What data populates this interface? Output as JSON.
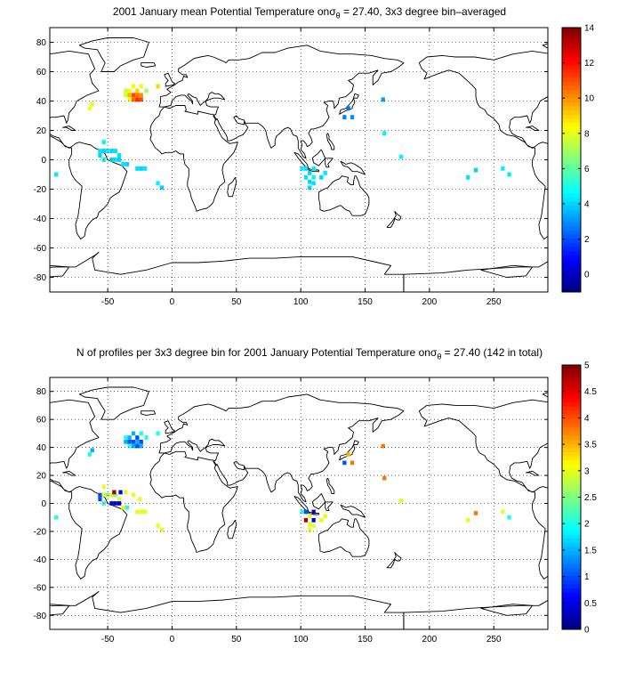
{
  "chart_data": [
    {
      "type": "heatmap",
      "title": {
        "prefix": "2001 January mean Potential Temperature on",
        "sigma": "σ",
        "sub": "θ",
        "suffix": " = 27.40, 3x3 degree bin–averaged"
      },
      "xlim": [
        -95,
        292
      ],
      "ylim": [
        -90,
        90
      ],
      "xticks": [
        -50,
        0,
        50,
        100,
        150,
        200,
        250
      ],
      "yticks": [
        80,
        60,
        40,
        20,
        0,
        -20,
        -40,
        -60,
        -80
      ],
      "grid": "dotted",
      "colorbar": {
        "min": -1,
        "max": 14,
        "ticks": [
          0,
          2,
          4,
          6,
          8,
          10,
          12,
          14
        ],
        "colormap": "jet"
      },
      "cell_size_deg": 3,
      "points": [
        [
          -30,
          50,
          8.5
        ],
        [
          -24,
          50,
          8.0
        ],
        [
          -36,
          47,
          7.5
        ],
        [
          -33,
          47,
          8.2
        ],
        [
          -27,
          47,
          9.0
        ],
        [
          -20,
          47,
          7.0
        ],
        [
          -36,
          44,
          7.8
        ],
        [
          -33,
          44,
          9.5
        ],
        [
          -30,
          44,
          11.0
        ],
        [
          -27,
          44,
          10.5
        ],
        [
          -24,
          44,
          10.0
        ],
        [
          -33,
          41,
          8.0
        ],
        [
          -30,
          41,
          10.5
        ],
        [
          -27,
          41,
          11.5
        ],
        [
          -24,
          41,
          11.0
        ],
        [
          -11,
          50,
          9.0
        ],
        [
          -62,
          38,
          7.8
        ],
        [
          -64,
          35,
          8.3
        ],
        [
          -53,
          12,
          4.5
        ],
        [
          -56,
          6,
          4.3
        ],
        [
          -53,
          6,
          4.0
        ],
        [
          -50,
          6,
          4.5
        ],
        [
          -47,
          6,
          4.0
        ],
        [
          -44,
          6,
          4.2
        ],
        [
          -56,
          3,
          4.0
        ],
        [
          -41,
          3,
          4.2
        ],
        [
          -53,
          0,
          4.5
        ],
        [
          -47,
          0,
          4.0
        ],
        [
          -44,
          0,
          4.3
        ],
        [
          -41,
          0,
          4.0
        ],
        [
          -38,
          -3,
          4.2
        ],
        [
          -35,
          -3,
          4.0
        ],
        [
          -27,
          -6,
          4.2
        ],
        [
          -24,
          -6,
          4.0
        ],
        [
          -21,
          -6,
          4.3
        ],
        [
          -11,
          -16,
          4.5
        ],
        [
          -8,
          -19,
          4.0
        ],
        [
          -90,
          -10,
          4.3
        ],
        [
          101,
          -6,
          4.5
        ],
        [
          104,
          -6,
          4.2
        ],
        [
          107,
          -9,
          4.0
        ],
        [
          110,
          -6,
          4.3
        ],
        [
          104,
          -12,
          4.2
        ],
        [
          107,
          -15,
          4.0
        ],
        [
          110,
          -12,
          4.5
        ],
        [
          107,
          -19,
          4.0
        ],
        [
          110,
          -16,
          4.2
        ],
        [
          116,
          -12,
          4.0
        ],
        [
          119,
          -9,
          4.3
        ],
        [
          137,
          35,
          2.5
        ],
        [
          134,
          29,
          2.8
        ],
        [
          140,
          29,
          3.0
        ],
        [
          164,
          41,
          3.2
        ],
        [
          165,
          18,
          4.5
        ],
        [
          178,
          2,
          4.5
        ],
        [
          230,
          -12,
          4.2
        ],
        [
          236,
          -7,
          4.0
        ],
        [
          257,
          -6,
          4.5
        ],
        [
          262,
          -10,
          4.3
        ]
      ]
    },
    {
      "type": "heatmap",
      "title": {
        "prefix": "N of profiles per 3x3 degree bin for 2001 January Potential Temperature on",
        "sigma": "σ",
        "sub": "θ",
        "suffix": " = 27.40 (142 in total)"
      },
      "xlim": [
        -95,
        292
      ],
      "ylim": [
        -90,
        90
      ],
      "xticks": [
        -50,
        0,
        50,
        100,
        150,
        200,
        250
      ],
      "yticks": [
        80,
        60,
        40,
        20,
        0,
        -20,
        -40,
        -60,
        -80
      ],
      "grid": "dotted",
      "colorbar": {
        "min": 0,
        "max": 5,
        "ticks": [
          0,
          0.5,
          1,
          1.5,
          2,
          2.5,
          3,
          3.5,
          4,
          4.5,
          5
        ],
        "colormap": "jet"
      },
      "cell_size_deg": 3,
      "points": [
        [
          -30,
          50,
          1.5
        ],
        [
          -24,
          50,
          2.0
        ],
        [
          -36,
          47,
          2.0
        ],
        [
          -33,
          47,
          1.5
        ],
        [
          -27,
          47,
          1.0
        ],
        [
          -20,
          47,
          2.0
        ],
        [
          -36,
          44,
          1.5
        ],
        [
          -33,
          44,
          1.0
        ],
        [
          -30,
          44,
          1.0
        ],
        [
          -27,
          44,
          1.5
        ],
        [
          -24,
          44,
          1.0
        ],
        [
          -33,
          41,
          2.0
        ],
        [
          -30,
          41,
          1.5
        ],
        [
          -27,
          41,
          1.0
        ],
        [
          -24,
          41,
          1.5
        ],
        [
          -11,
          50,
          2.0
        ],
        [
          -62,
          38,
          1.5
        ],
        [
          -64,
          35,
          2.0
        ],
        [
          -53,
          12,
          3.0
        ],
        [
          -56,
          6,
          1.0
        ],
        [
          -53,
          6,
          3.0
        ],
        [
          -50,
          6,
          2.5
        ],
        [
          -47,
          6,
          3.0
        ],
        [
          -44,
          6,
          2.5
        ],
        [
          -56,
          3,
          1.0
        ],
        [
          -41,
          3,
          3.0
        ],
        [
          -53,
          0,
          2.0
        ],
        [
          -47,
          0,
          0.5
        ],
        [
          -44,
          0,
          0.5
        ],
        [
          -41,
          0,
          0.5
        ],
        [
          -38,
          -3,
          3.0
        ],
        [
          -35,
          -3,
          2.0
        ],
        [
          -27,
          -6,
          3.0
        ],
        [
          -24,
          -6,
          3.0
        ],
        [
          -21,
          -6,
          3.0
        ],
        [
          -11,
          -16,
          3.0
        ],
        [
          -8,
          -19,
          3.0
        ],
        [
          -45,
          8,
          4.8
        ],
        [
          -40,
          8,
          0.5
        ],
        [
          -36,
          8,
          3.0
        ],
        [
          -30,
          6,
          3.0
        ],
        [
          -25,
          3,
          3.0
        ],
        [
          -90,
          -10,
          2.0
        ],
        [
          101,
          -6,
          2.0
        ],
        [
          104,
          -6,
          1.0
        ],
        [
          107,
          -9,
          3.0
        ],
        [
          110,
          -6,
          0.5
        ],
        [
          104,
          -12,
          4.8
        ],
        [
          107,
          -15,
          3.0
        ],
        [
          110,
          -12,
          0.5
        ],
        [
          107,
          -19,
          3.0
        ],
        [
          110,
          -16,
          3.0
        ],
        [
          116,
          -12,
          3.0
        ],
        [
          119,
          -9,
          3.0
        ],
        [
          137,
          35,
          3.5
        ],
        [
          134,
          29,
          1.0
        ],
        [
          140,
          29,
          3.8
        ],
        [
          164,
          41,
          3.8
        ],
        [
          165,
          18,
          3.8
        ],
        [
          178,
          2,
          3.0
        ],
        [
          230,
          -12,
          3.0
        ],
        [
          236,
          -7,
          3.8
        ],
        [
          257,
          -6,
          3.0
        ],
        [
          262,
          -10,
          2.0
        ]
      ]
    }
  ]
}
